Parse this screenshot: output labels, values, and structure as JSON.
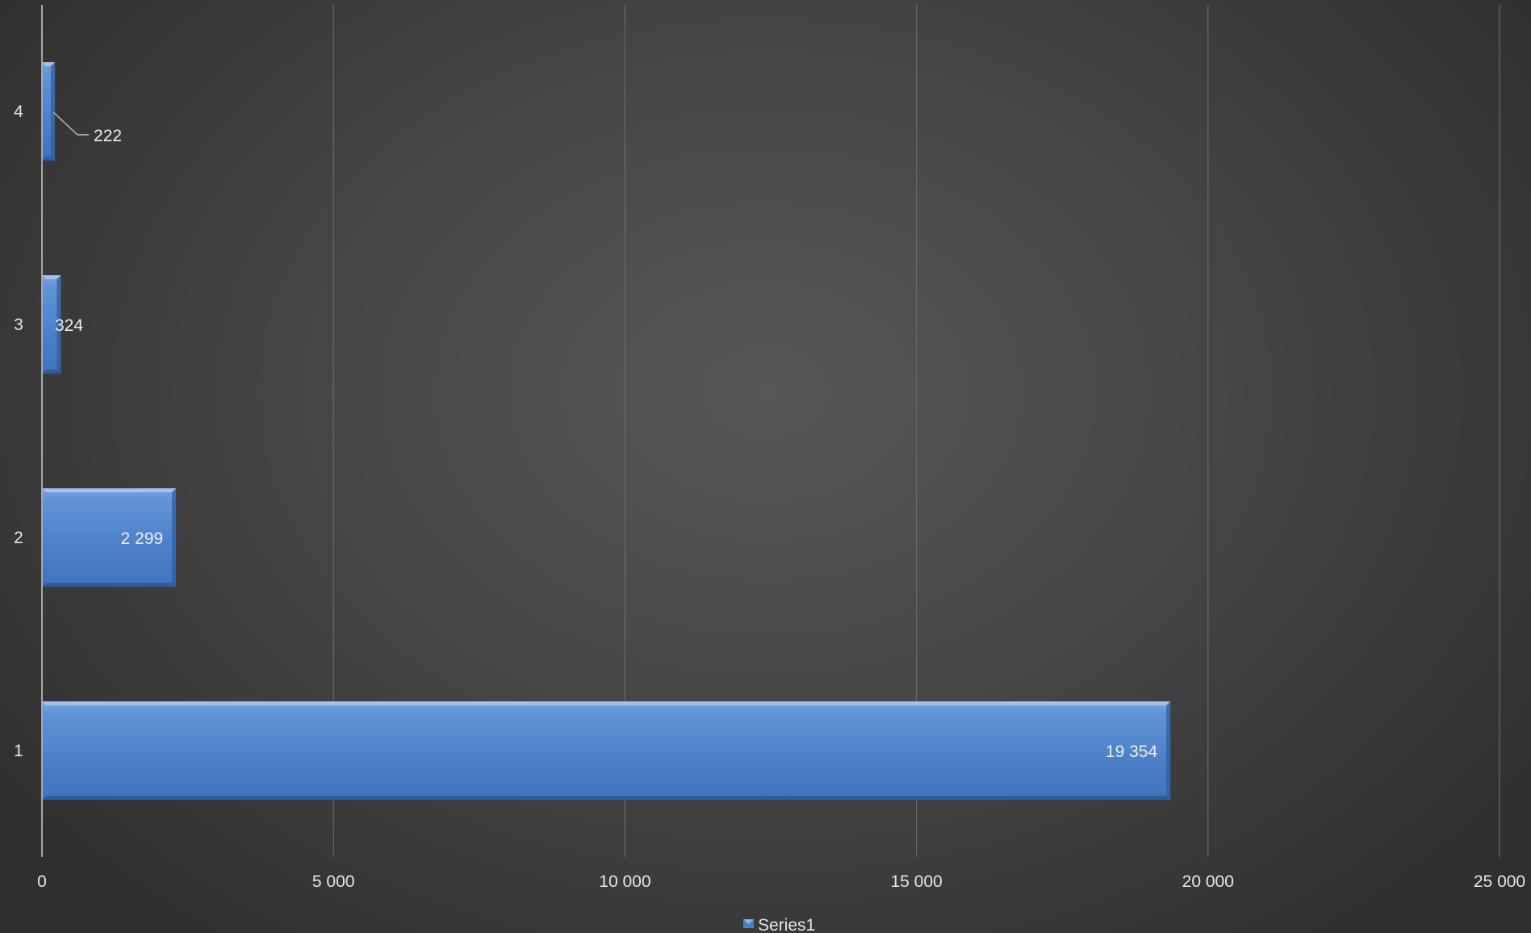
{
  "chart_data": {
    "type": "bar",
    "orientation": "horizontal",
    "categories": [
      "1",
      "2",
      "3",
      "4"
    ],
    "series": [
      {
        "name": "Series1",
        "values": [
          19354,
          2299,
          324,
          222
        ],
        "value_labels": [
          "19 354",
          "2 299",
          "324",
          "222"
        ],
        "color": "#4a7fc7"
      }
    ],
    "x_ticks": [
      "0",
      "5 000",
      "10 000",
      "15 000",
      "20 000",
      "25 000"
    ],
    "xlim": [
      0,
      25000
    ],
    "grid": "vertical",
    "legend": "bottom",
    "background": "#474747"
  }
}
